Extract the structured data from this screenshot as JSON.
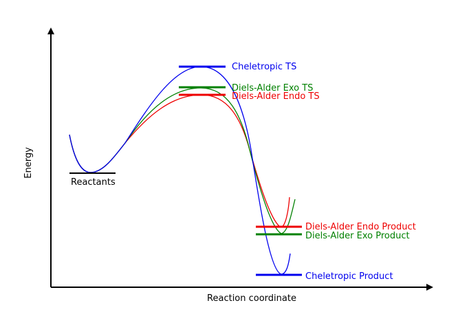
{
  "axes": {
    "y_label": "Energy",
    "x_label": "Reaction coordinate"
  },
  "colors": {
    "axis": "#000000",
    "cheletropic": "#0000ee",
    "exo": "#008000",
    "endo": "#ee0000"
  },
  "levels": {
    "reactants": "Reactants",
    "cheletropic_ts": "Cheletropic TS",
    "exo_ts": "Diels-Alder Exo TS",
    "endo_ts": "Diels-Alder Endo TS",
    "endo_product": "Diels-Alder Endo Product",
    "exo_product": "Diels-Alder Exo Product",
    "cheletropic_product": "Cheletropic Product"
  }
}
